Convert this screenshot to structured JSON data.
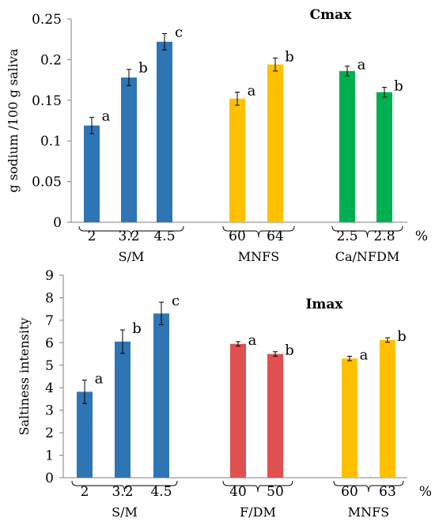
{
  "chart_data": [
    {
      "type": "bar",
      "title": "Cmax",
      "ylabel": "g sodium  /100 g saliva",
      "ylim": [
        0,
        0.25
      ],
      "yticks": [
        0,
        0.05,
        0.1,
        0.15,
        0.2,
        0.25
      ],
      "ytick_labels": [
        "0",
        "0.05",
        "0.1",
        "0.15",
        "0.2",
        "0.25"
      ],
      "grid": false,
      "unit_label": "%",
      "groups": [
        {
          "name": "S/M",
          "color": "#2e75b6",
          "categories": [
            "2",
            "3.2",
            "4.5"
          ],
          "values": [
            0.119,
            0.178,
            0.222
          ],
          "errors": [
            0.01,
            0.01,
            0.01
          ],
          "letters": [
            "a",
            "b",
            "c"
          ]
        },
        {
          "name": "MNFS",
          "color": "#ffc000",
          "categories": [
            "60",
            "64"
          ],
          "values": [
            0.152,
            0.194
          ],
          "errors": [
            0.008,
            0.008
          ],
          "letters": [
            "a",
            "b"
          ]
        },
        {
          "name": "Ca/NFDM",
          "color": "#00b050",
          "categories": [
            "2.5",
            "2.8"
          ],
          "values": [
            0.186,
            0.16
          ],
          "errors": [
            0.006,
            0.006
          ],
          "letters": [
            "a",
            "b"
          ]
        }
      ]
    },
    {
      "type": "bar",
      "title": "Imax",
      "ylabel": "Saltiness intensity",
      "ylim": [
        0,
        9
      ],
      "yticks": [
        0,
        1,
        2,
        3,
        4,
        5,
        6,
        7,
        8,
        9
      ],
      "ytick_labels": [
        "0",
        "1",
        "2",
        "3",
        "4",
        "5",
        "6",
        "7",
        "8",
        "9"
      ],
      "grid": false,
      "unit_label": "%",
      "groups": [
        {
          "name": "S/M",
          "color": "#2e75b6",
          "categories": [
            "2",
            "3.2",
            "4.5"
          ],
          "values": [
            3.82,
            6.05,
            7.3
          ],
          "errors": [
            0.52,
            0.52,
            0.5
          ],
          "letters": [
            "a",
            "b",
            "c"
          ]
        },
        {
          "name": "F/DM",
          "color": "#e05050",
          "categories": [
            "40",
            "50"
          ],
          "values": [
            5.95,
            5.5
          ],
          "errors": [
            0.1,
            0.1
          ],
          "letters": [
            "a",
            "b"
          ]
        },
        {
          "name": "MNFS",
          "color": "#ffc000",
          "categories": [
            "60",
            "63"
          ],
          "values": [
            5.3,
            6.12
          ],
          "errors": [
            0.1,
            0.1
          ],
          "letters": [
            "a",
            "b"
          ]
        }
      ]
    }
  ]
}
